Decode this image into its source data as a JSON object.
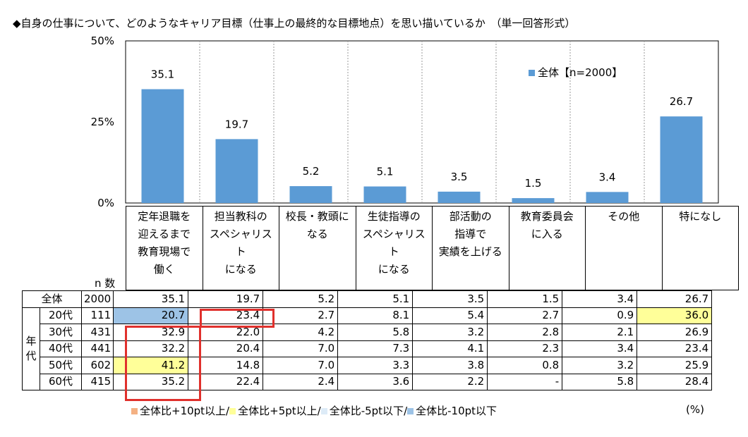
{
  "title": "◆自身の仕事について、どのようなキャリア目標（仕事上の最終的な目標地点）を思い描いているか　（単一回答形式）",
  "chart_data": {
    "type": "bar",
    "categories": [
      [
        "定年退職を",
        "迎えるまで",
        "教育現場で",
        "働く"
      ],
      [
        "担当教科の",
        "スペシャリスト",
        "になる"
      ],
      [
        "校長・教頭に",
        "なる"
      ],
      [
        "生徒指導の",
        "スペシャリスト",
        "になる"
      ],
      [
        "部活動の",
        "指導で",
        "実績を上げる"
      ],
      [
        "教育委員会",
        "に入る"
      ],
      [
        "その他"
      ],
      [
        "特になし"
      ]
    ],
    "series": [
      {
        "name": "全体【n=2000】",
        "values": [
          35.1,
          19.7,
          5.2,
          5.1,
          3.5,
          1.5,
          3.4,
          26.7
        ],
        "color": "#5b9bd5"
      }
    ],
    "value_labels": [
      "35.1",
      "19.7",
      "5.2",
      "5.1",
      "3.5",
      "1.5",
      "3.4",
      "26.7"
    ],
    "ylim": [
      0,
      50
    ],
    "yticks": [
      "0%",
      "25%",
      "50%"
    ],
    "ytick_values": [
      0,
      25,
      50
    ],
    "grid": false,
    "legend_position": "top-right"
  },
  "table": {
    "n_header": "n 数",
    "group_label": [
      "年",
      "代"
    ],
    "rows": [
      {
        "label": "全体",
        "n": "2000",
        "values": [
          "35.1",
          "19.7",
          "5.2",
          "5.1",
          "3.5",
          "1.5",
          "3.4",
          "26.7"
        ],
        "hl": [
          "",
          "",
          "",
          "",
          "",
          "",
          "",
          ""
        ]
      },
      {
        "label": "20代",
        "n": "111",
        "values": [
          "20.7",
          "23.4",
          "2.7",
          "8.1",
          "5.4",
          "2.7",
          "0.9",
          "36.0"
        ],
        "hl": [
          "blue",
          "",
          "",
          "",
          "",
          "",
          "",
          "yellow"
        ]
      },
      {
        "label": "30代",
        "n": "431",
        "values": [
          "32.9",
          "22.0",
          "4.2",
          "5.8",
          "3.2",
          "2.8",
          "2.1",
          "26.9"
        ],
        "hl": [
          "",
          "",
          "",
          "",
          "",
          "",
          "",
          ""
        ]
      },
      {
        "label": "40代",
        "n": "441",
        "values": [
          "32.2",
          "20.4",
          "7.0",
          "7.3",
          "4.1",
          "2.3",
          "3.4",
          "23.4"
        ],
        "hl": [
          "",
          "",
          "",
          "",
          "",
          "",
          "",
          ""
        ]
      },
      {
        "label": "50代",
        "n": "602",
        "values": [
          "41.2",
          "14.8",
          "7.0",
          "3.3",
          "3.8",
          "0.8",
          "3.2",
          "25.9"
        ],
        "hl": [
          "yellow",
          "",
          "",
          "",
          "",
          "",
          "",
          ""
        ]
      },
      {
        "label": "60代",
        "n": "415",
        "values": [
          "35.2",
          "22.4",
          "2.4",
          "3.6",
          "2.2",
          "-",
          "5.8",
          "28.4"
        ],
        "hl": [
          "",
          "",
          "",
          "",
          "",
          "",
          "",
          ""
        ]
      }
    ]
  },
  "legend_bottom": [
    {
      "label": "全体比+10pt以上/",
      "color": "#f4b183"
    },
    {
      "label": "全体比+5pt以上/",
      "color": "#ffff99"
    },
    {
      "label": "全体比-5pt以下/",
      "color": "#ddebf7"
    },
    {
      "label": "全体比-10pt以下",
      "color": "#9dc3e6"
    }
  ],
  "unit": "(%)",
  "colors": {
    "bar": "#5b9bd5",
    "highlight_box": "#e0302c"
  }
}
